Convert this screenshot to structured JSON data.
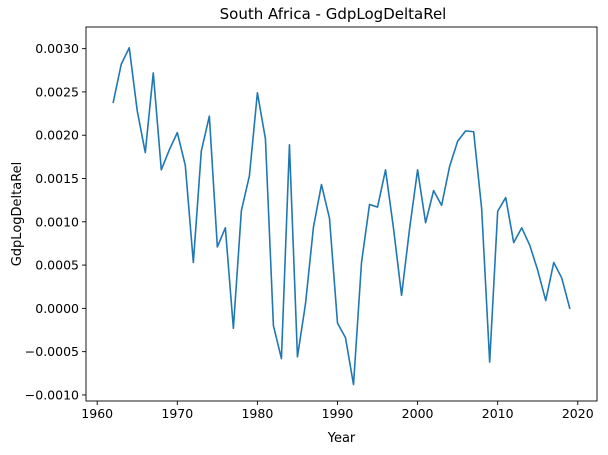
{
  "chart_data": {
    "type": "line",
    "title": "South Africa - GdpLogDeltaRel",
    "xlabel": "Year",
    "ylabel": "GdpLogDeltaRel",
    "xlim": [
      1958.6,
      2022.4
    ],
    "ylim": [
      -0.00107,
      0.00325
    ],
    "xticks": [
      1960,
      1970,
      1980,
      1990,
      2000,
      2010,
      2020
    ],
    "xtick_labels": [
      "1960",
      "1970",
      "1980",
      "1990",
      "2000",
      "2010",
      "2020"
    ],
    "yticks": [
      -0.001,
      -0.0005,
      0.0,
      0.0005,
      0.001,
      0.0015,
      0.002,
      0.0025,
      0.003
    ],
    "ytick_labels": [
      "−0.0010",
      "−0.0005",
      "0.0000",
      "0.0005",
      "0.0010",
      "0.0015",
      "0.0020",
      "0.0025",
      "0.0030"
    ],
    "grid": false,
    "legend": "none",
    "series": [
      {
        "color": "#1f77b4",
        "x": [
          1962,
          1963,
          1964,
          1965,
          1966,
          1967,
          1968,
          1969,
          1970,
          1971,
          1972,
          1973,
          1974,
          1975,
          1976,
          1977,
          1978,
          1979,
          1980,
          1981,
          1982,
          1983,
          1984,
          1985,
          1986,
          1987,
          1988,
          1989,
          1990,
          1991,
          1992,
          1993,
          1994,
          1995,
          1996,
          1997,
          1998,
          1999,
          2000,
          2001,
          2002,
          2003,
          2004,
          2005,
          2006,
          2007,
          2008,
          2009,
          2010,
          2011,
          2012,
          2013,
          2014,
          2015,
          2016,
          2017,
          2018,
          2019
        ],
        "y": [
          0.00238,
          0.00282,
          0.00301,
          0.00228,
          0.0018,
          0.00272,
          0.0016,
          0.00183,
          0.00203,
          0.00165,
          0.00053,
          0.00182,
          0.00222,
          0.00071,
          0.00093,
          -0.00023,
          0.00113,
          0.00153,
          0.00249,
          0.00196,
          -0.0002,
          -0.00058,
          0.00189,
          -0.00056,
          5e-05,
          0.00094,
          0.00143,
          0.00104,
          -0.00017,
          -0.00034,
          -0.00088,
          0.00053,
          0.0012,
          0.00117,
          0.0016,
          0.00092,
          0.00015,
          0.00092,
          0.0016,
          0.00099,
          0.00136,
          0.00119,
          0.00164,
          0.00193,
          0.00205,
          0.00204,
          0.00115,
          -0.00062,
          0.00112,
          0.00128,
          0.00076,
          0.00093,
          0.00073,
          0.00044,
          9e-05,
          0.00053,
          0.00035,
          0.0
        ]
      }
    ]
  }
}
